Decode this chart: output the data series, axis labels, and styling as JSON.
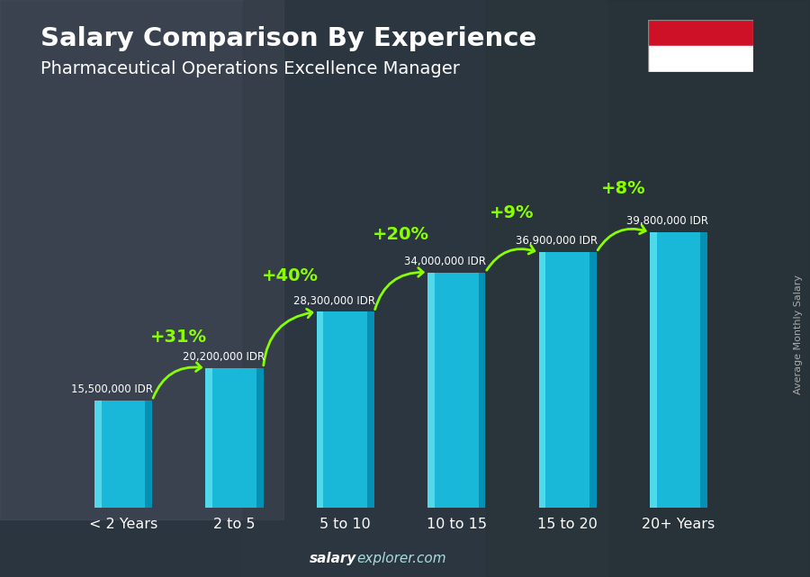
{
  "title": "Salary Comparison By Experience",
  "subtitle": "Pharmaceutical Operations Excellence Manager",
  "categories": [
    "< 2 Years",
    "2 to 5",
    "5 to 10",
    "10 to 15",
    "15 to 20",
    "20+ Years"
  ],
  "values": [
    15500000,
    20200000,
    28300000,
    34000000,
    36900000,
    39800000
  ],
  "labels": [
    "15,500,000 IDR",
    "20,200,000 IDR",
    "28,300,000 IDR",
    "34,000,000 IDR",
    "36,900,000 IDR",
    "39,800,000 IDR"
  ],
  "pct_labels": [
    "+31%",
    "+40%",
    "+20%",
    "+9%",
    "+8%"
  ],
  "bar_color_main": "#1ab8d8",
  "bar_color_light": "#55ddee",
  "bar_color_dark": "#0088aa",
  "bg_color": "#3a3a4a",
  "title_color": "#ffffff",
  "subtitle_color": "#ffffff",
  "label_color": "#ffffff",
  "pct_color": "#88ff00",
  "xlabel_color": "#ffffff",
  "ylabel_text": "Average Monthly Salary",
  "footer_left": "salary",
  "footer_right": "explorer.com",
  "ylim": [
    0,
    50000000
  ],
  "arrow_color": "#88ff00",
  "flag_red": "#CE1126",
  "flag_white": "#FFFFFF"
}
